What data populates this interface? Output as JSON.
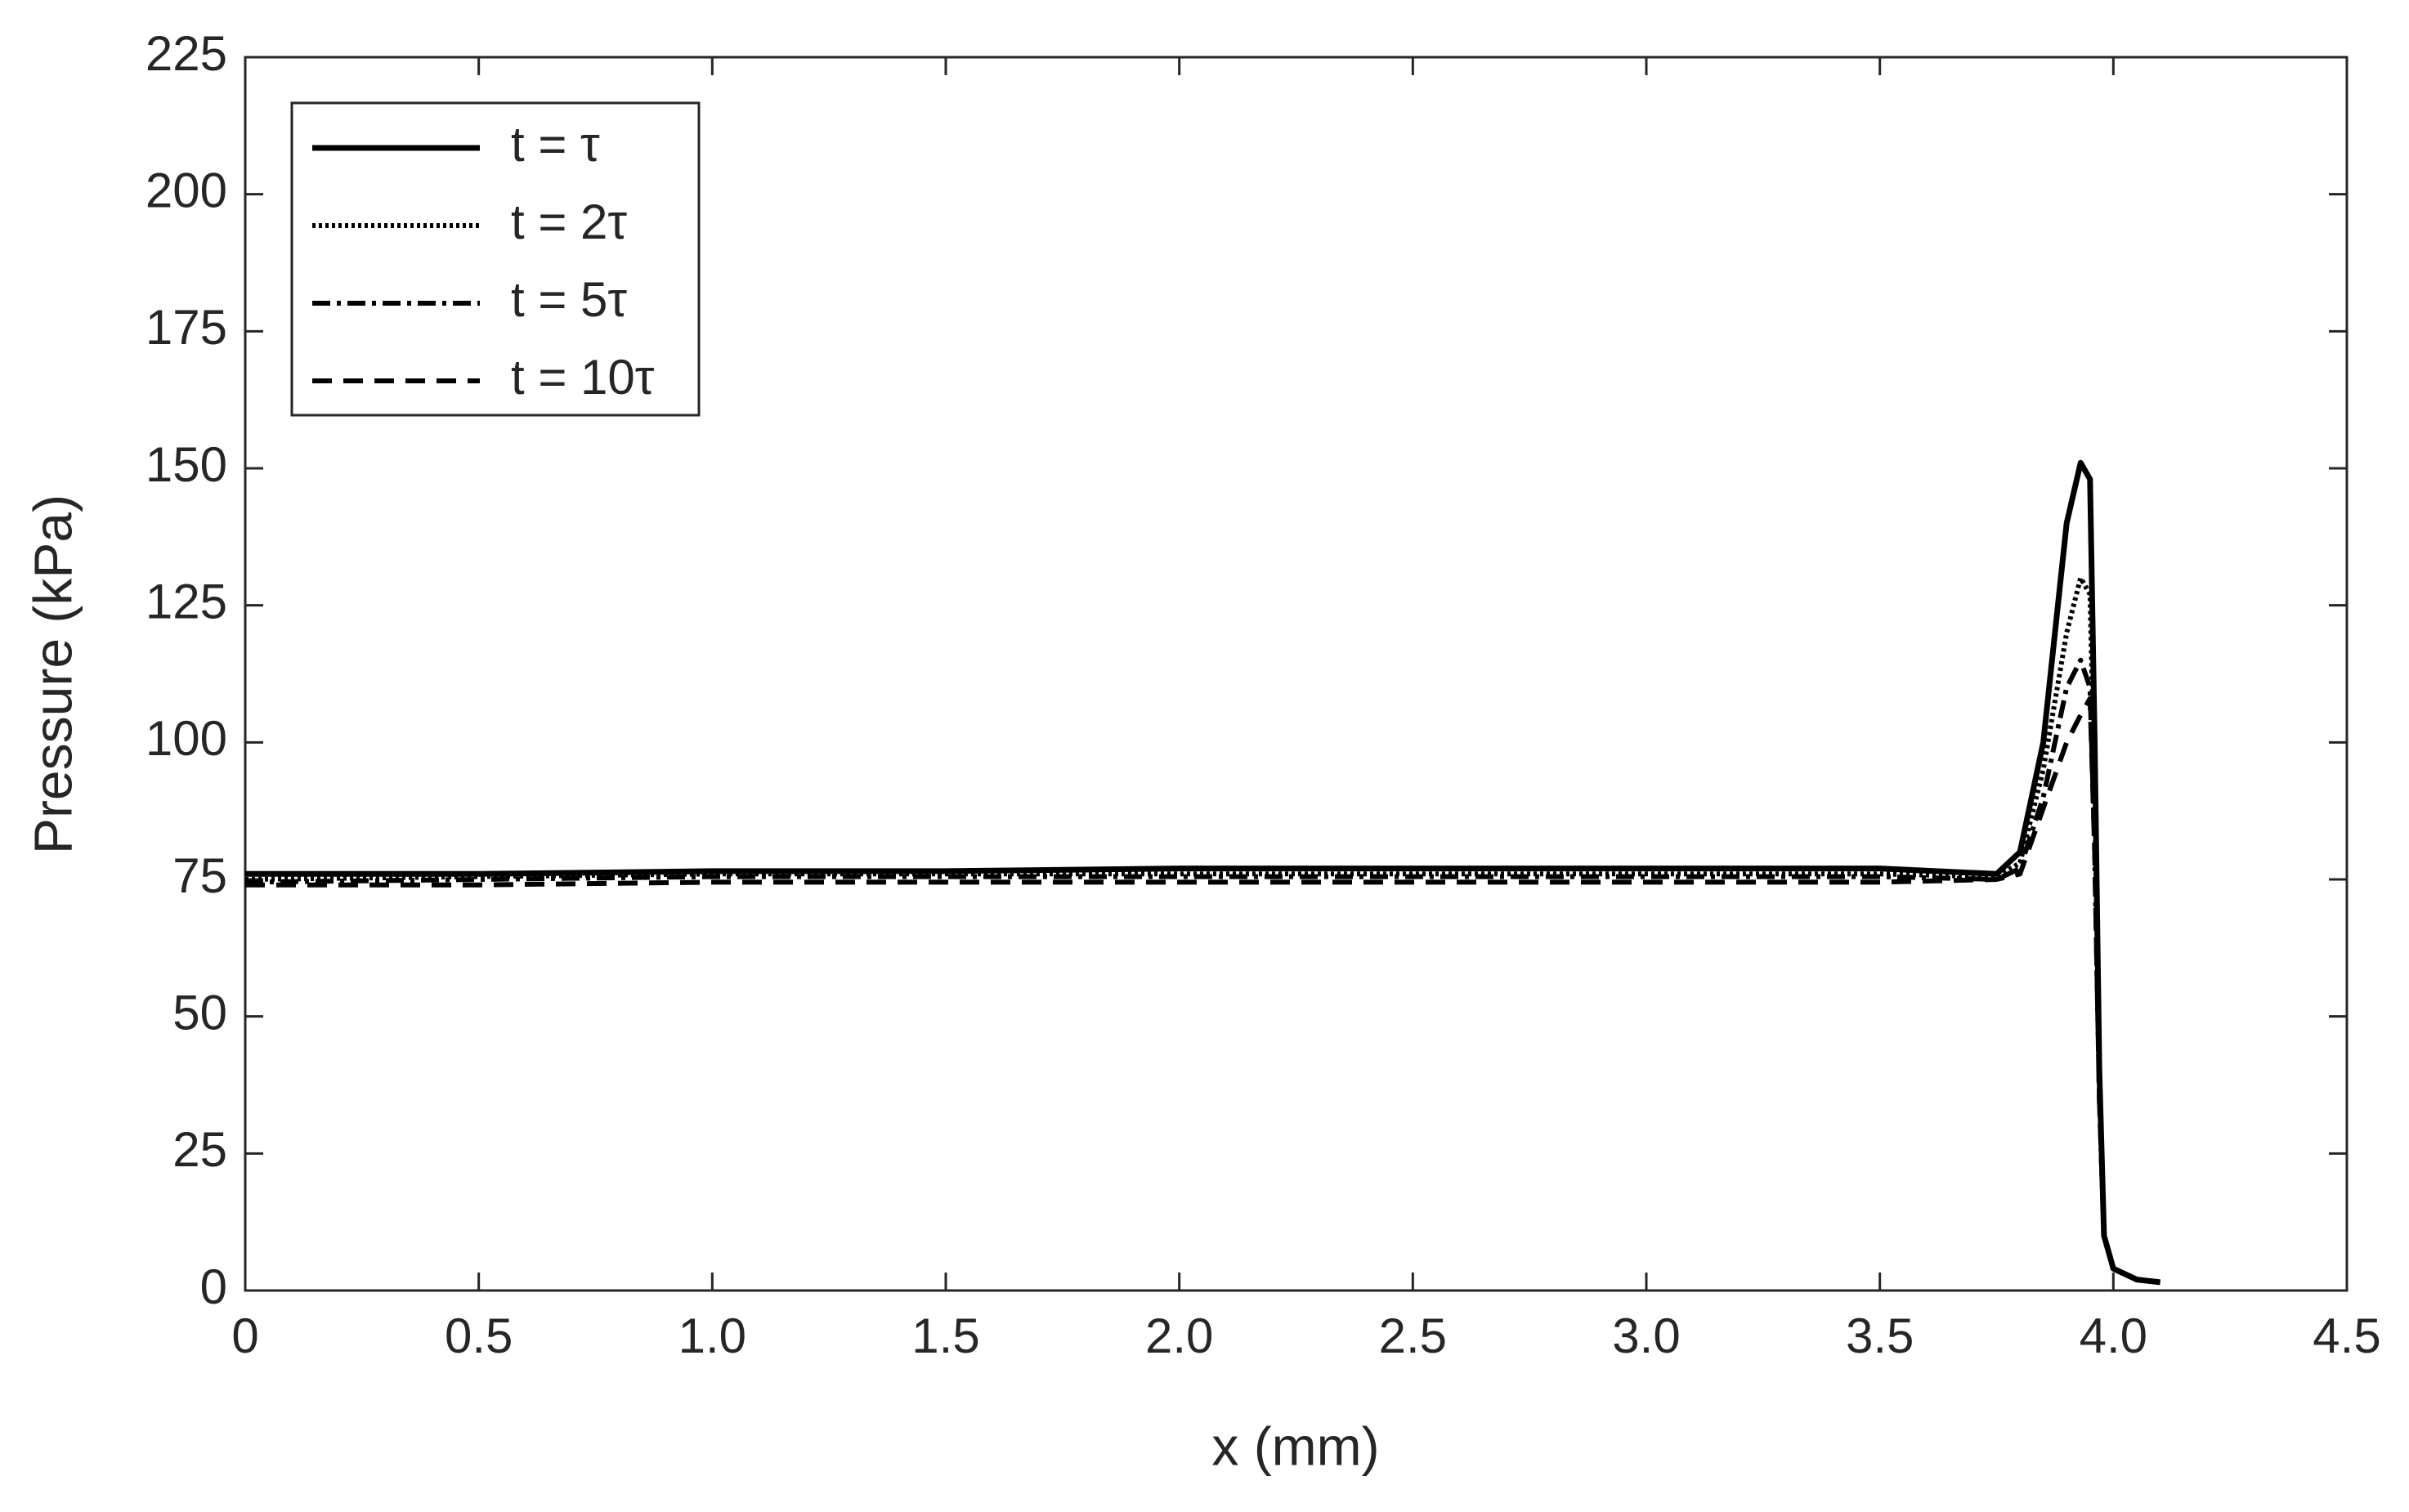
{
  "chart_data": {
    "type": "line",
    "x_label": "x (mm)",
    "y_label": "Pressure (kPa)",
    "x": [
      0,
      0.5,
      1,
      1.5,
      2,
      2.5,
      3,
      3.5,
      3.75,
      3.8,
      3.85,
      3.9,
      3.93,
      3.95,
      3.96,
      3.97,
      3.98,
      4.0,
      4.05,
      4.1
    ],
    "series": [
      {
        "name": "t = τ",
        "color": "#000000",
        "dash": "solid",
        "values": [
          76,
          76,
          76.5,
          76.5,
          77,
          77,
          77,
          77,
          76,
          80,
          100,
          140,
          151,
          148,
          100,
          40,
          10,
          4,
          2,
          1.5
        ]
      },
      {
        "name": "t = 2τ",
        "color": "#000000",
        "dash": "dotted",
        "values": [
          75,
          75.5,
          76,
          76,
          76,
          76,
          76,
          76,
          75.5,
          78,
          95,
          120,
          130,
          127,
          90,
          40,
          10,
          4,
          2,
          1.5
        ]
      },
      {
        "name": "t = 5τ",
        "color": "#000000",
        "dash": "dashdot",
        "values": [
          74.5,
          75,
          75.5,
          75.5,
          75.5,
          75.5,
          75.5,
          75.5,
          75,
          77,
          90,
          110,
          115,
          110,
          80,
          35,
          10,
          4,
          2,
          1.5
        ]
      },
      {
        "name": "t = 10τ",
        "color": "#000000",
        "dash": "dashed",
        "values": [
          74,
          74,
          74.5,
          74.5,
          74.5,
          74.5,
          74.5,
          74.5,
          75,
          76,
          88,
          100,
          105,
          108,
          80,
          35,
          10,
          4,
          2,
          1.5
        ]
      }
    ],
    "xlim": [
      0,
      4.5
    ],
    "xticks": [
      0,
      0.5,
      {
        "value": 1,
        "label": "1.0"
      },
      1.5,
      {
        "value": 2,
        "label": "2.0"
      },
      2.5,
      {
        "value": 3,
        "label": "3.0"
      },
      3.5,
      {
        "value": 4,
        "label": "4.0"
      },
      4.5
    ],
    "ylim": [
      0,
      225
    ],
    "yticks": [
      0,
      25,
      50,
      75,
      100,
      125,
      150,
      175,
      200,
      225
    ],
    "grid": false,
    "legend": "upper left"
  }
}
